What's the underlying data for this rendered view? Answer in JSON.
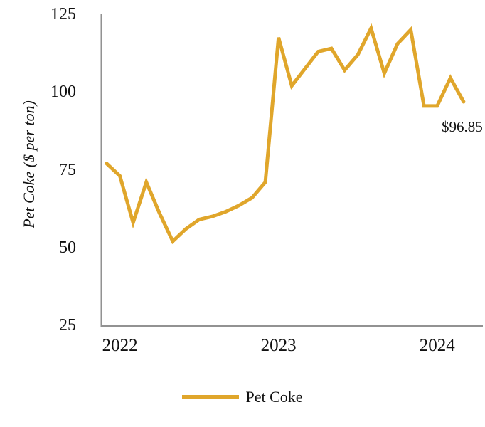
{
  "chart_data": {
    "type": "line",
    "title": "",
    "xlabel": "",
    "ylabel": "Pet Coke ($ per ton)",
    "ylim": [
      25,
      125
    ],
    "yticks": [
      125,
      100,
      75,
      50,
      25
    ],
    "grid": false,
    "legend_position": "bottom",
    "categories": [
      "Dec-21",
      "Jan-22",
      "Feb-22",
      "Mar-22",
      "Apr-22",
      "May-22",
      "Jun-22",
      "Jul-22",
      "Aug-22",
      "Sep-22",
      "Oct-22",
      "Nov-22",
      "Dec-22",
      "Jan-23",
      "Feb-23",
      "Mar-23",
      "Apr-23",
      "May-23",
      "Jun-23",
      "Jul-23",
      "Aug-23",
      "Sep-23",
      "Oct-23",
      "Nov-23",
      "Dec-23",
      "Jan-24",
      "Feb-24",
      "Mar-24"
    ],
    "xticks": [
      {
        "label": "2022",
        "index": 1
      },
      {
        "label": "2023",
        "index": 13
      },
      {
        "label": "2024",
        "index": 25
      }
    ],
    "series": [
      {
        "name": "Pet Coke",
        "color": "#E0A62B",
        "values": [
          77,
          73,
          58,
          71,
          61,
          52,
          56,
          59,
          60,
          61.5,
          63.5,
          66,
          71,
          117.5,
          102,
          107.5,
          113,
          114,
          107,
          112,
          120.5,
          106,
          115.5,
          120,
          95.5,
          95.5,
          104.5,
          96.85
        ]
      }
    ],
    "annotation": {
      "text": "$96.85",
      "index": 27,
      "value": 96.85
    },
    "axis_color": "#929292"
  },
  "legend": {
    "label": "Pet Coke"
  }
}
